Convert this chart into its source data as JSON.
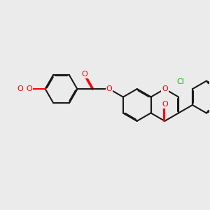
{
  "bg": "#ebebeb",
  "bond_color": "#1a1a1a",
  "oxygen_color": "#ff0000",
  "chlorine_color": "#00bb00",
  "lw": 1.5,
  "dbo": 0.055,
  "figsize": [
    3.0,
    3.0
  ],
  "dpi": 100,
  "xlim": [
    -8.5,
    4.5
  ],
  "ylim": [
    -3.2,
    3.2
  ]
}
